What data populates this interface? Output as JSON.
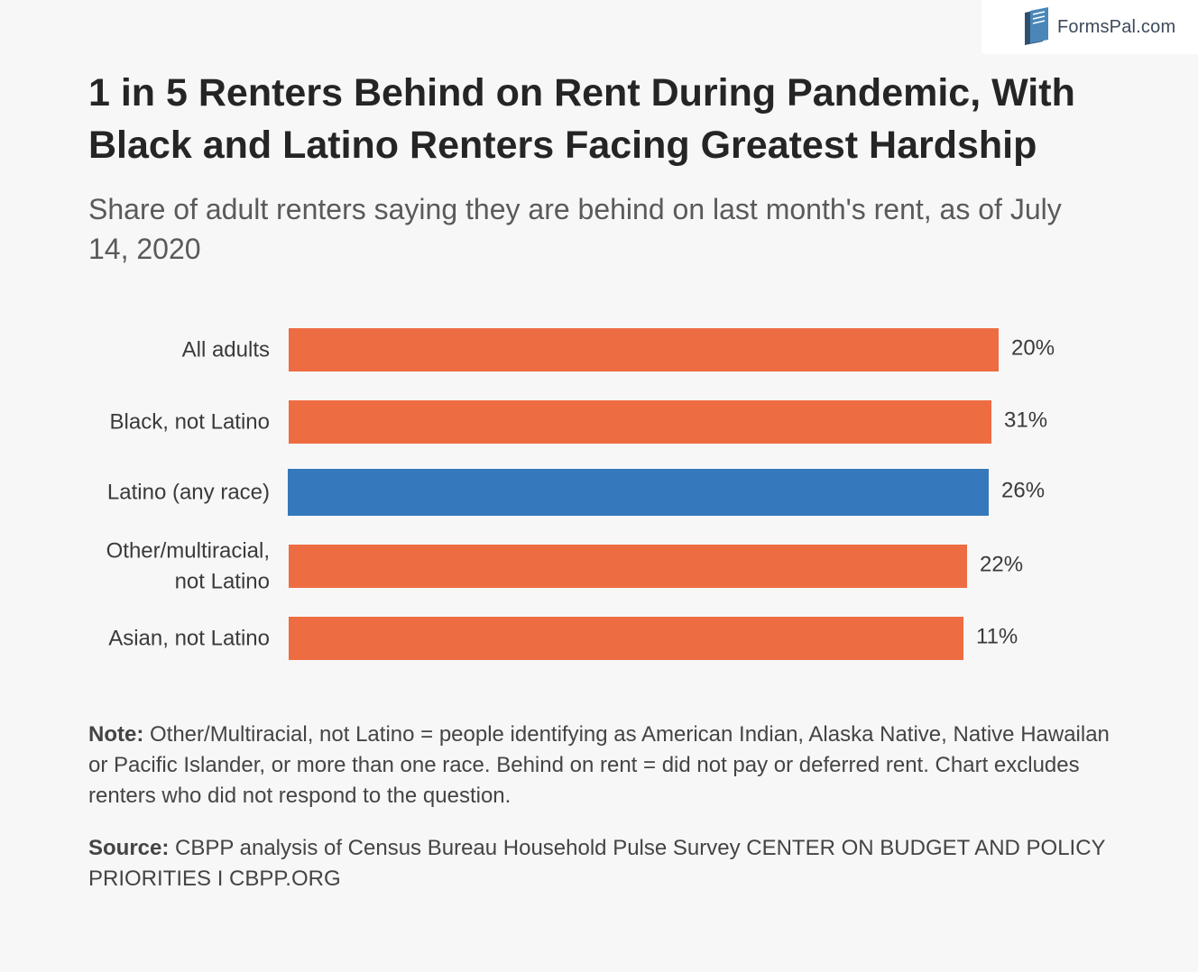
{
  "brand": {
    "name": "FormsPal.com"
  },
  "chart_data": {
    "type": "bar",
    "orientation": "horizontal",
    "title": "1 in 5 Renters Behind on Rent During Pandemic, With Black and Latino Renters Facing Greatest Hardship",
    "subtitle": "Share of adult renters saying they are behind on last month's rent, as of July 14, 2020",
    "categories": [
      [
        "All adults"
      ],
      [
        "Black, not Latino"
      ],
      [
        "Latino (any race)"
      ],
      [
        "Other/multiracial,",
        "not Latino"
      ],
      [
        "Asian, not Latino"
      ]
    ],
    "values": [
      20,
      31,
      26,
      22,
      11
    ],
    "value_labels": [
      "20%",
      "31%",
      "26%",
      "22%",
      "11%"
    ],
    "bar_colors": [
      "#ee6c42",
      "#ee6c42",
      "#3578bb",
      "#ee6c42",
      "#ee6c42"
    ],
    "grid": false,
    "legend": "none"
  },
  "note": {
    "lead": "Note:",
    "text": " Other/Multiracial, not Latino = people identifying as American Indian, Alaska Native, Native Hawailan or Pacific Islander, or more than one race. Behind on rent = did not pay or deferred rent. Chart excludes renters who did not respond to the question."
  },
  "source": {
    "lead": "Source:",
    "text": " CBPP analysis of Census Bureau Household Pulse Survey CENTER ON BUDGET AND POLICY PRIORITIES I CBPP.ORG"
  },
  "colors": {
    "background": "#f7f7f7",
    "primary_bar": "#ee6c42",
    "highlight_bar": "#3578bb"
  }
}
